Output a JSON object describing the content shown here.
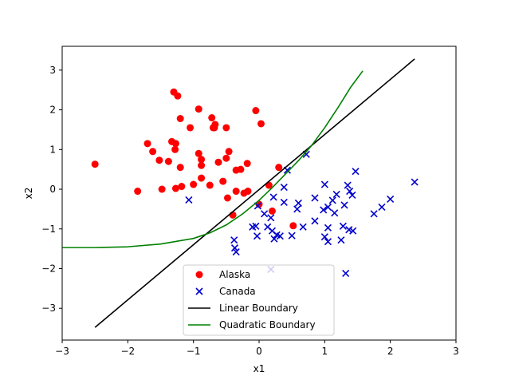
{
  "chart_data": {
    "type": "scatter",
    "title": "",
    "xlabel": "x1",
    "ylabel": "x2",
    "xlim": [
      -3,
      3
    ],
    "ylim": [
      -3.8,
      3.6
    ],
    "xticks": [
      "-3",
      "-2",
      "-1",
      "0",
      "1",
      "2",
      "3"
    ],
    "yticks": [
      "-3",
      "-2",
      "-1",
      "0",
      "1",
      "2",
      "3"
    ],
    "grid": false,
    "legend_position": "lower-center",
    "series": [
      {
        "name": "Alaska",
        "marker": "circle",
        "color": "#ff0000",
        "points": [
          [
            -2.5,
            0.63
          ],
          [
            -1.85,
            -0.05
          ],
          [
            -1.7,
            1.15
          ],
          [
            -1.62,
            0.95
          ],
          [
            -1.52,
            0.73
          ],
          [
            -1.48,
            0.0
          ],
          [
            -1.38,
            0.7
          ],
          [
            -1.33,
            1.2
          ],
          [
            -1.3,
            2.45
          ],
          [
            -1.28,
            1.0
          ],
          [
            -1.27,
            1.15
          ],
          [
            -1.27,
            0.02
          ],
          [
            -1.24,
            2.35
          ],
          [
            -1.2,
            1.78
          ],
          [
            -1.2,
            0.55
          ],
          [
            -1.18,
            0.07
          ],
          [
            -1.05,
            1.55
          ],
          [
            -1.0,
            0.12
          ],
          [
            -0.92,
            2.02
          ],
          [
            -0.92,
            0.9
          ],
          [
            -0.88,
            0.75
          ],
          [
            -0.88,
            0.28
          ],
          [
            -0.88,
            0.6
          ],
          [
            -0.75,
            0.1
          ],
          [
            -0.72,
            1.8
          ],
          [
            -0.7,
            1.55
          ],
          [
            -0.68,
            1.55
          ],
          [
            -0.67,
            1.63
          ],
          [
            -0.62,
            0.68
          ],
          [
            -0.55,
            0.2
          ],
          [
            -0.5,
            1.55
          ],
          [
            -0.5,
            0.78
          ],
          [
            -0.48,
            -0.22
          ],
          [
            -0.46,
            0.95
          ],
          [
            -0.4,
            -0.65
          ],
          [
            -0.35,
            0.48
          ],
          [
            -0.35,
            -0.05
          ],
          [
            -0.28,
            0.5
          ],
          [
            -0.23,
            -0.1
          ],
          [
            -0.18,
            0.65
          ],
          [
            -0.17,
            -0.05
          ],
          [
            -0.05,
            1.98
          ],
          [
            0.0,
            -0.38
          ],
          [
            0.03,
            1.65
          ],
          [
            0.15,
            0.1
          ],
          [
            0.2,
            -0.55
          ],
          [
            0.3,
            0.55
          ],
          [
            0.52,
            -0.92
          ]
        ]
      },
      {
        "name": "Canada",
        "marker": "x",
        "color": "#0000cc",
        "points": [
          [
            -1.07,
            -0.27
          ],
          [
            -0.38,
            -1.28
          ],
          [
            -0.37,
            -1.48
          ],
          [
            -0.35,
            -1.58
          ],
          [
            -0.1,
            -0.95
          ],
          [
            -0.05,
            -0.93
          ],
          [
            -0.03,
            -1.18
          ],
          [
            -0.02,
            -0.42
          ],
          [
            0.08,
            -0.62
          ],
          [
            0.13,
            -0.95
          ],
          [
            0.18,
            -0.72
          ],
          [
            0.18,
            -2.02
          ],
          [
            0.2,
            -1.05
          ],
          [
            0.22,
            -0.2
          ],
          [
            0.23,
            -1.25
          ],
          [
            0.27,
            -1.15
          ],
          [
            0.32,
            -1.18
          ],
          [
            0.38,
            0.05
          ],
          [
            0.38,
            -0.33
          ],
          [
            0.43,
            0.48
          ],
          [
            0.5,
            -1.17
          ],
          [
            0.58,
            -0.5
          ],
          [
            0.6,
            -0.35
          ],
          [
            0.67,
            -0.95
          ],
          [
            0.72,
            0.88
          ],
          [
            0.85,
            -0.22
          ],
          [
            0.85,
            -0.8
          ],
          [
            0.98,
            -0.52
          ],
          [
            1.0,
            0.12
          ],
          [
            1.0,
            -1.2
          ],
          [
            1.05,
            -0.45
          ],
          [
            1.05,
            -1.32
          ],
          [
            1.05,
            -0.97
          ],
          [
            1.12,
            -0.28
          ],
          [
            1.15,
            -0.6
          ],
          [
            1.18,
            -0.13
          ],
          [
            1.25,
            -1.28
          ],
          [
            1.28,
            -0.93
          ],
          [
            1.3,
            -0.4
          ],
          [
            1.32,
            -2.12
          ],
          [
            1.35,
            0.1
          ],
          [
            1.37,
            -1.02
          ],
          [
            1.38,
            -0.05
          ],
          [
            1.42,
            -0.15
          ],
          [
            1.43,
            -1.05
          ],
          [
            1.47,
            0.45
          ],
          [
            1.75,
            -0.62
          ],
          [
            1.87,
            -0.45
          ],
          [
            2.0,
            -0.25
          ],
          [
            2.37,
            0.18
          ]
        ]
      },
      {
        "name": "Linear Boundary",
        "marker": "line",
        "color": "#000000",
        "points": [
          [
            -2.5,
            -3.48
          ],
          [
            2.37,
            3.28
          ]
        ]
      },
      {
        "name": "Quadratic Boundary",
        "marker": "line",
        "color": "#008000",
        "points": [
          [
            -3.0,
            -1.47
          ],
          [
            -2.5,
            -1.47
          ],
          [
            -2.0,
            -1.45
          ],
          [
            -1.5,
            -1.38
          ],
          [
            -1.0,
            -1.24
          ],
          [
            -0.75,
            -1.1
          ],
          [
            -0.5,
            -0.9
          ],
          [
            -0.25,
            -0.62
          ],
          [
            0.0,
            -0.28
          ],
          [
            0.2,
            0.04
          ],
          [
            0.4,
            0.38
          ],
          [
            0.6,
            0.72
          ],
          [
            0.8,
            1.1
          ],
          [
            1.0,
            1.55
          ],
          [
            1.2,
            2.05
          ],
          [
            1.4,
            2.58
          ],
          [
            1.58,
            2.98
          ]
        ]
      }
    ]
  }
}
